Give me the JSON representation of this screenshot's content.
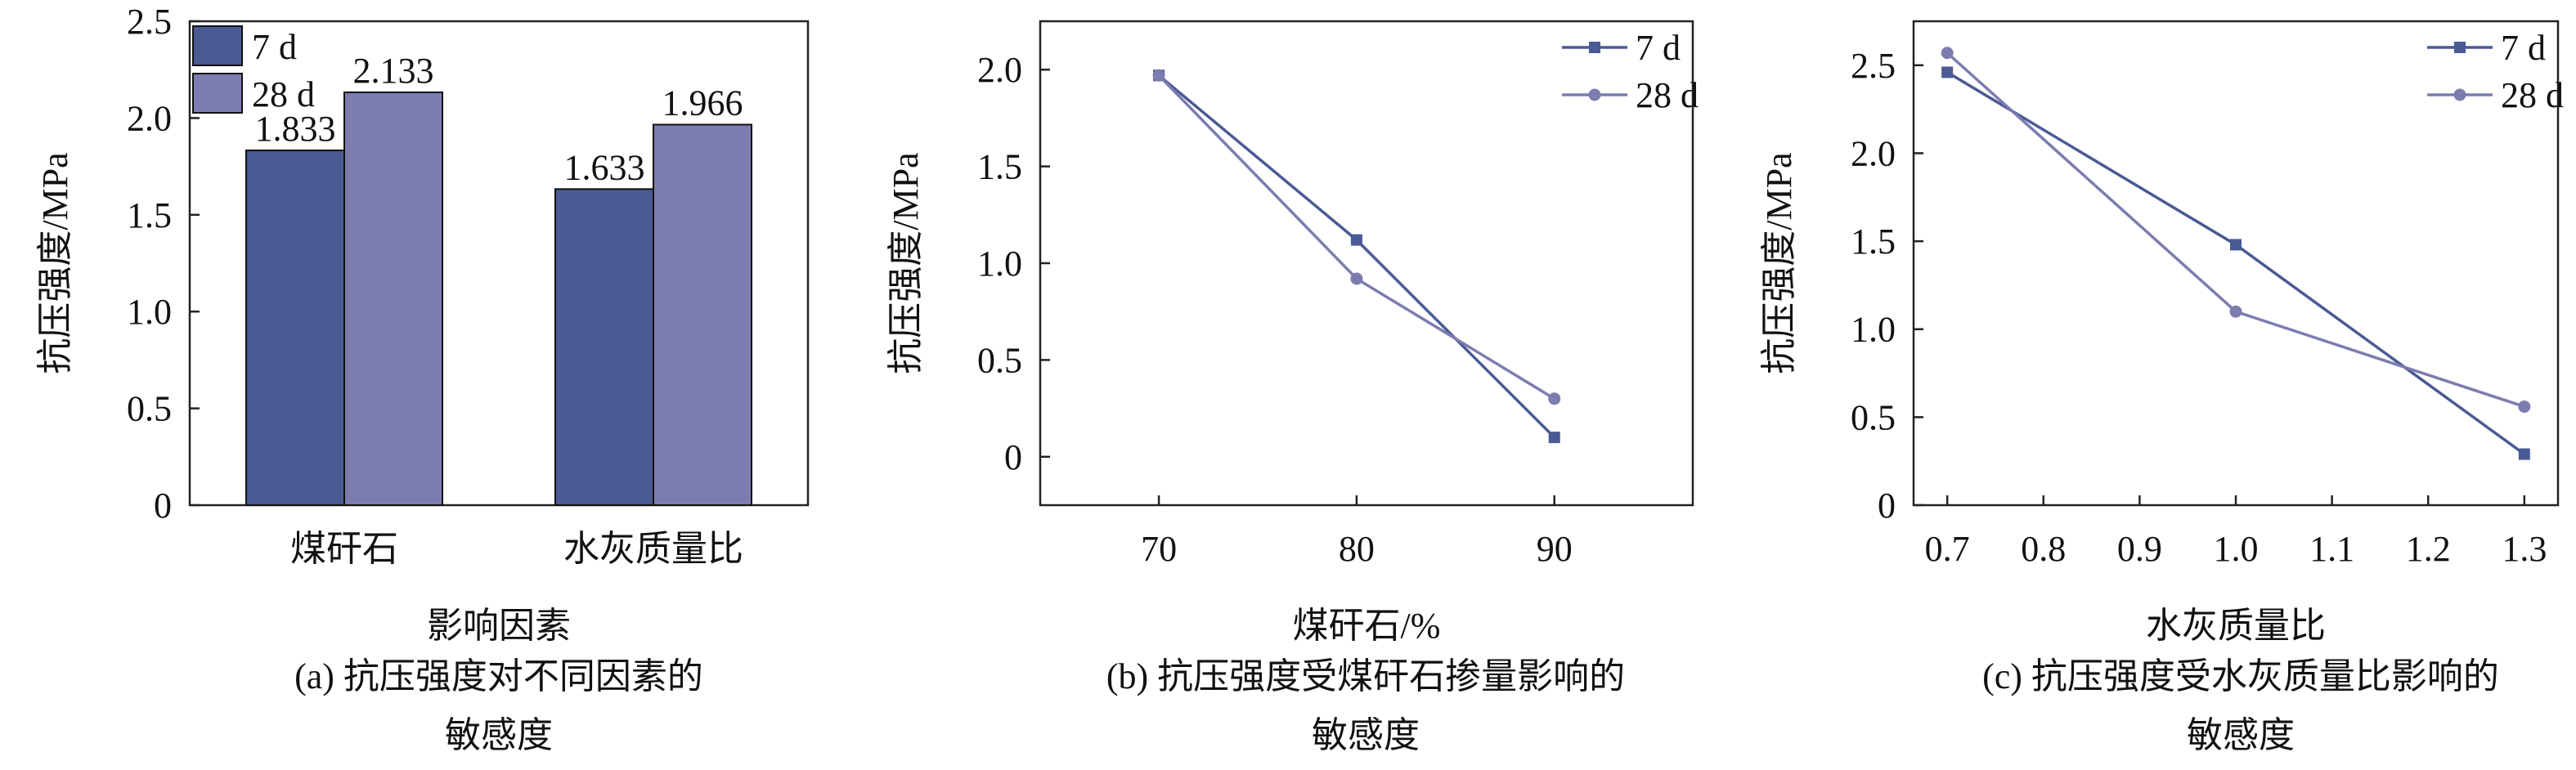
{
  "colors": {
    "series_7d": "#4a5a94",
    "series_28d": "#7d7cb0",
    "axis": "#222222"
  },
  "chart_data": [
    {
      "id": "a",
      "type": "bar",
      "caption": [
        "(a) 抗压强度对不同因素的",
        "敏感度"
      ],
      "xlabel": "影响因素",
      "ylabel": "抗压强度/MPa",
      "categories": [
        "煤矸石",
        "水灰质量比"
      ],
      "series": [
        {
          "name": "7 d",
          "values": [
            1.833,
            1.633
          ],
          "labels": [
            "1.833",
            "1.633"
          ]
        },
        {
          "name": "28 d",
          "values": [
            2.133,
            1.966
          ],
          "labels": [
            "2.133",
            "1.966"
          ]
        }
      ],
      "ylim": [
        0,
        2.5
      ],
      "yticks": [
        0,
        0.5,
        1.0,
        1.5,
        2.0,
        2.5
      ],
      "ytick_labels": [
        "0",
        "0.5",
        "1.0",
        "1.5",
        "2.0",
        "2.5"
      ],
      "legend": "top-left",
      "grid": false
    },
    {
      "id": "b",
      "type": "line",
      "caption": [
        "(b) 抗压强度受煤矸石掺量影响的",
        "敏感度"
      ],
      "xlabel": "煤矸石/%",
      "ylabel": "抗压强度/MPa",
      "x": [
        70,
        80,
        90
      ],
      "xlim": [
        64,
        97
      ],
      "xticks": [
        70,
        80,
        90
      ],
      "xtick_labels": [
        "70",
        "80",
        "90"
      ],
      "series": [
        {
          "name": "7 d",
          "values": [
            1.97,
            1.12,
            0.1
          ],
          "marker": "square"
        },
        {
          "name": "28 d",
          "values": [
            1.97,
            0.92,
            0.3
          ],
          "marker": "circle"
        }
      ],
      "ylim": [
        -0.25,
        2.25
      ],
      "yticks": [
        0,
        0.5,
        1.0,
        1.5,
        2.0
      ],
      "ytick_labels": [
        "0",
        "0.5",
        "1.0",
        "1.5",
        "2.0"
      ],
      "legend": "top-right",
      "grid": false
    },
    {
      "id": "c",
      "type": "line",
      "caption": [
        "(c) 抗压强度受水灰质量比影响的",
        "敏感度"
      ],
      "xlabel": "水灰质量比",
      "ylabel": "抗压强度/MPa",
      "x": [
        0.7,
        1.0,
        1.3
      ],
      "xlim": [
        0.665,
        1.335
      ],
      "xticks": [
        0.7,
        0.8,
        0.9,
        1.0,
        1.1,
        1.2,
        1.3
      ],
      "xtick_labels": [
        "0.7",
        "0.8",
        "0.9",
        "1.0",
        "1.1",
        "1.2",
        "1.3"
      ],
      "series": [
        {
          "name": "7 d",
          "values": [
            2.46,
            1.48,
            0.29
          ],
          "marker": "square"
        },
        {
          "name": "28 d",
          "values": [
            2.57,
            1.1,
            0.56
          ],
          "marker": "circle"
        }
      ],
      "ylim": [
        0,
        2.75
      ],
      "yticks": [
        0,
        0.5,
        1.0,
        1.5,
        2.0,
        2.5
      ],
      "ytick_labels": [
        "0",
        "0.5",
        "1.0",
        "1.5",
        "2.0",
        "2.5"
      ],
      "legend": "top-right",
      "grid": false
    }
  ]
}
